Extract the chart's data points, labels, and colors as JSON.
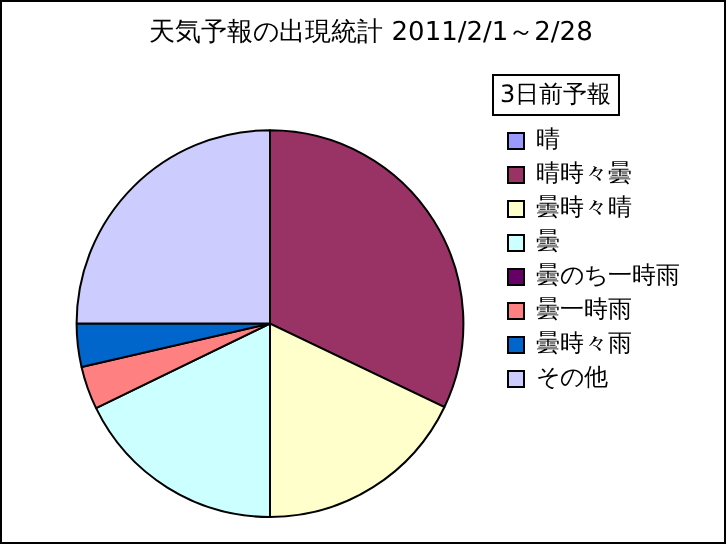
{
  "chart_data": {
    "type": "pie",
    "title": "天気予報の出現統計 2011/2/1～2/28",
    "annotations": [
      "3日前予報"
    ],
    "categories": [
      "晴",
      "晴時々曇",
      "曇時々晴",
      "曇",
      "曇のち一時雨",
      "曇一時雨",
      "曇時々雨",
      "その他"
    ],
    "values": [
      0,
      32.1,
      17.9,
      17.8,
      0,
      3.6,
      3.6,
      25
    ],
    "colors": [
      "#9999ff",
      "#993366",
      "#ffffcc",
      "#ccffff",
      "#660066",
      "#ff8080",
      "#0066cc",
      "#ccccff"
    ],
    "legend": "right"
  }
}
